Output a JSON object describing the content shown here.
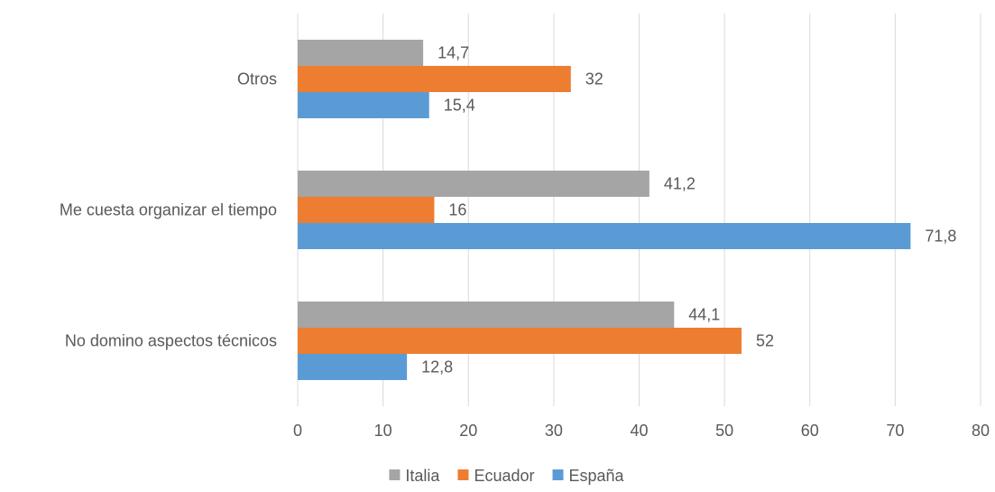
{
  "chart_data": {
    "type": "bar",
    "orientation": "horizontal",
    "categories": [
      "Otros",
      "Me cuesta organizar el tiempo",
      "No domino aspectos técnicos"
    ],
    "series": [
      {
        "name": "Italia",
        "color": "#a5a5a5",
        "values": [
          14.7,
          41.2,
          44.1
        ],
        "labels": [
          "14,7",
          "41,2",
          "44,1"
        ]
      },
      {
        "name": "Ecuador",
        "color": "#ed7d31",
        "values": [
          32,
          16,
          52
        ],
        "labels": [
          "32",
          "16",
          "52"
        ]
      },
      {
        "name": "España",
        "color": "#5b9bd5",
        "values": [
          15.4,
          71.8,
          12.8
        ],
        "labels": [
          "15,4",
          "71,8",
          "12,8"
        ]
      }
    ],
    "xlim": [
      0,
      80
    ],
    "xticks": [
      0,
      10,
      20,
      30,
      40,
      50,
      60,
      70,
      80
    ],
    "grid": true,
    "legend": "bottom"
  }
}
